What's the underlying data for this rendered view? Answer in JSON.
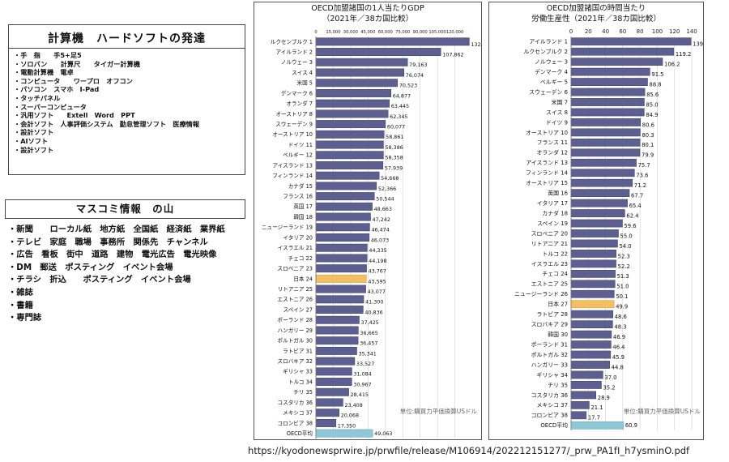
{
  "hardware_box": {
    "title": "計算機　ハードソフトの発達",
    "items": [
      "・手　指　　手5+足5",
      "・ソロバン　　計算尺　　タイガー計算機",
      "・電動計算機　電卓",
      "・コンピュータ　　ワープロ　オフコン",
      "・パソコン　スマホ　I-Pad",
      "・タッチパネル",
      "・スーパーコンピュータ",
      "・汎用ソフト　　Extell　Word　PPT",
      "・会計ソフト　人事評価システム　勤怠管理ソフト　医療情報",
      "・設計ソフト",
      "・AIソフト",
      "・設計ソフト"
    ]
  },
  "media_box": {
    "title": "マスコミ情報　の山",
    "items": [
      "・新聞　　ローカル紙　地方紙　全国紙　経済紙　業界紙",
      "・テレビ　家庭　職場　事務所　関係先　チャンネル",
      "・広告　看板　街中　道路　建物　電光広告　電光映像",
      "・DM　郵送　ポスティング　イベント会場",
      "・チラシ　折込　　ポスティング　イベント会場",
      "・雑誌",
      "・書籍",
      "・専門誌"
    ]
  },
  "source_url": "https://kyodonewsprwire.jp/prwfile/release/M106914/202212151277/_prw_PA1fI_h7ysminO.pdf",
  "chart_data": [
    {
      "type": "bar",
      "orientation": "horizontal",
      "title": "OECD加盟諸国の1人当たりGDP",
      "subtitle": "（2021年／38カ国比較）",
      "note": "単位:購買力平価換算USドル",
      "xlim": [
        0,
        135000
      ],
      "ticks": [
        "0",
        "15,000",
        "30,000",
        "45,000",
        "60,000",
        "75,000",
        "90,000",
        "105,000",
        "120,000"
      ],
      "tick_values": [
        0,
        15000,
        30000,
        45000,
        60000,
        75000,
        90000,
        105000,
        120000
      ],
      "bar_color": "#5c5f8f",
      "highlight_color": "#f4bf63",
      "average_color": "#8fc7d6",
      "categories": [
        "ルクセンブルク 1",
        "アイルランド 2",
        "ノルウェー 3",
        "スイス 4",
        "米国 5",
        "デンマーク 6",
        "オランダ 7",
        "オーストリア 8",
        "スウェーデン 9",
        "オーストリア 10",
        "ドイツ 11",
        "ベルギー 12",
        "アイスランド 13",
        "フィンランド 14",
        "カナダ 15",
        "フランス 16",
        "英国 17",
        "韓国 18",
        "ニュージーランド 19",
        "イタリア 20",
        "イスラエル 21",
        "チェコ 22",
        "スロベニア 23",
        "日本 24",
        "リトアニア 25",
        "エストニア 26",
        "スペイン 27",
        "ポーランド 28",
        "ハンガリー 29",
        "ポルトガル 30",
        "ラトビア 31",
        "スロバキア 32",
        "ギリシャ 33",
        "トルコ 34",
        "チリ 35",
        "コスタリカ 36",
        "メキシコ 37",
        "コロンビア 38",
        "OECD平均"
      ],
      "values": [
        132474,
        107862,
        79163,
        76074,
        70523,
        64877,
        63445,
        62345,
        60077,
        58861,
        58386,
        58358,
        57939,
        54668,
        52366,
        50544,
        48663,
        47242,
        46474,
        46073,
        44335,
        44198,
        43767,
        43595,
        43077,
        41300,
        40836,
        37425,
        36665,
        36457,
        35341,
        33527,
        31084,
        30967,
        28415,
        23408,
        20068,
        17350,
        49063
      ],
      "value_labels": [
        "132,474",
        "107,862",
        "79,163",
        "76,074",
        "70,523",
        "64,877",
        "63,445",
        "62,345",
        "60,077",
        "58,861",
        "58,386",
        "58,358",
        "57,939",
        "54,668",
        "52,366",
        "50,544",
        "48,663",
        "47,242",
        "46,474",
        "46,073",
        "44,335",
        "44,198",
        "43,767",
        "43,595",
        "43,077",
        "41,300",
        "40,836",
        "37,425",
        "36,665",
        "36,457",
        "35,341",
        "33,527",
        "31,084",
        "30,967",
        "28,415",
        "23,408",
        "20,068",
        "17,350",
        "49,063"
      ],
      "highlight": "日本 24",
      "average": "OECD平均"
    },
    {
      "type": "bar",
      "orientation": "horizontal",
      "title": "OECD加盟諸国の時間当たり",
      "subtitle": "労働生産性（2021年／38カ国比較）",
      "note": "単位:購買力平価換算USドル",
      "xlim": [
        0,
        140
      ],
      "ticks": [
        "0",
        "20",
        "40",
        "60",
        "80",
        "100",
        "120",
        "140"
      ],
      "tick_values": [
        0,
        20,
        40,
        60,
        80,
        100,
        120,
        140
      ],
      "bar_color": "#5c5f8f",
      "highlight_color": "#f4bf63",
      "average_color": "#8fc7d6",
      "categories": [
        "アイルランド 1",
        "ルクセンブルク 2",
        "ノルウェー 3",
        "デンマーク 4",
        "ベルギー 5",
        "スウェーデン 6",
        "米国 7",
        "スイス 8",
        "ドイツ 9",
        "オーストリア 10",
        "フランス 11",
        "オランダ 12",
        "アイスランド 13",
        "フィンランド 14",
        "オーストリア 15",
        "英国 16",
        "イタリア 17",
        "カナダ 18",
        "スペイン 19",
        "スロベニア 20",
        "リトアニア 21",
        "トルコ 22",
        "イスラエル 23",
        "チェコ 24",
        "エストニア 25",
        "ニュージーランド 26",
        "日本 27",
        "ラトビア 28",
        "スロバキア 29",
        "韓国 30",
        "ポーランド 31",
        "ポルトガル 32",
        "ハンガリー 33",
        "ギリシャ 34",
        "チリ 35",
        "コスタリカ 36",
        "メキシコ 37",
        "コロンビア 38",
        "OECD平均"
      ],
      "values": [
        139.2,
        119.2,
        106.2,
        91.5,
        88.8,
        85.6,
        85.0,
        84.9,
        80.6,
        80.3,
        80.1,
        79.9,
        75.7,
        73.6,
        71.2,
        67.7,
        65.4,
        62.4,
        59.6,
        55.0,
        54.0,
        52.3,
        52.2,
        51.3,
        51.0,
        50.1,
        49.9,
        48.6,
        48.3,
        46.9,
        46.4,
        45.9,
        44.8,
        37.0,
        35.2,
        28.9,
        21.1,
        17.7,
        60.9
      ],
      "value_labels": [
        "139.2",
        "119.2",
        "106.2",
        "91.5",
        "88.8",
        "85.6",
        "85.0",
        "84.9",
        "80.6",
        "80.3",
        "80.1",
        "79.9",
        "75.7",
        "73.6",
        "71.2",
        "67.7",
        "65.4",
        "62.4",
        "59.6",
        "55.0",
        "54.0",
        "52.3",
        "52.2",
        "51.3",
        "51.0",
        "50.1",
        "49.9",
        "48.6",
        "48.3",
        "46.9",
        "46.4",
        "45.9",
        "44.8",
        "37.0",
        "35.2",
        "28.9",
        "21.1",
        "17.7",
        "60.9"
      ],
      "highlight": "日本 27",
      "average": "OECD平均"
    }
  ]
}
